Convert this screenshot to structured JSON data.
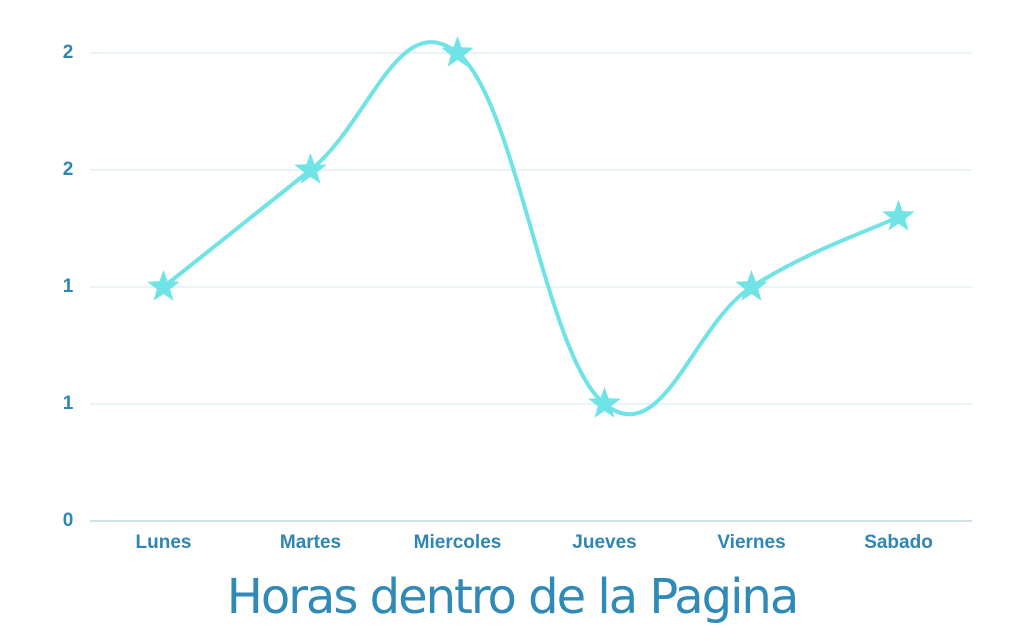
{
  "chart_data": {
    "type": "line",
    "title": "Horas dentro de la Pagina",
    "categories": [
      "Lunes",
      "Martes",
      "Miercoles",
      "Jueves",
      "Viernes",
      "Sabado"
    ],
    "values": [
      1,
      1.5,
      2,
      0.5,
      1,
      1.3
    ],
    "color": "#6fe3e6",
    "ylim": [
      0,
      2
    ],
    "yticks": [
      0,
      {
        "value": 0.5,
        "label": "1"
      },
      {
        "value": 1,
        "label": "1"
      },
      {
        "value": 1.5,
        "label": "2"
      },
      2
    ],
    "grid": true
  }
}
